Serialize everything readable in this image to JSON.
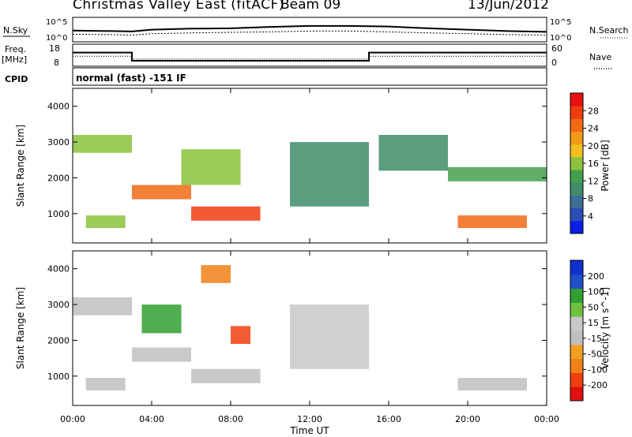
{
  "header": {
    "station": "Christmas Valley East (fitACF)",
    "beam": "Beam 09",
    "date": "13/Jun/2012"
  },
  "summary_panels": {
    "nsky_label": "N.Sky",
    "nsky_ticks": [
      "10^5",
      "10^0"
    ],
    "nsearch_label": "N.Search",
    "nsearch_ticks": [
      "10^5",
      "10^0"
    ],
    "freq_label_1": "Freq.",
    "freq_label_2": "[MHz]",
    "freq_ticks": [
      "18",
      "8"
    ],
    "nave_label": "Nave",
    "nave_ticks": [
      "60",
      "0"
    ],
    "cpid_label": "CPID",
    "cpid_value": "normal (fast) -151 IF"
  },
  "colors": {
    "power_scale": [
      "#0a1ee6",
      "#2a4cb4",
      "#3c6e96",
      "#3f8c6a",
      "#44a04e",
      "#8cc23c",
      "#f0c020",
      "#f09a18",
      "#f06a14",
      "#f03c10",
      "#e81010"
    ],
    "velocity_scale": [
      "#1030d0",
      "#2050c8",
      "#30a030",
      "#70c040",
      "#c8c8c8",
      "#c0c0c0",
      "#f0a020",
      "#f08018",
      "#f04010",
      "#e01010"
    ]
  },
  "chart_data": [
    {
      "type": "line",
      "title": "",
      "series": [
        {
          "name": "N.Sky",
          "x": [
            "00:00",
            "02:00",
            "03:00",
            "04:00",
            "06:00",
            "08:00",
            "10:00",
            "12:00",
            "14:00",
            "16:00",
            "18:00",
            "20:00",
            "22:00",
            "24:00"
          ],
          "values": [
            200,
            150,
            120,
            300,
            500,
            600,
            1200,
            2000,
            2000,
            1500,
            600,
            300,
            150,
            100
          ]
        },
        {
          "name": "N.Search",
          "x": [
            "00:00",
            "02:00",
            "03:00",
            "04:00",
            "06:00",
            "08:00",
            "10:00",
            "12:00",
            "14:00",
            "16:00",
            "18:00",
            "20:00",
            "22:00",
            "24:00"
          ],
          "values": [
            30,
            25,
            20,
            40,
            60,
            80,
            100,
            150,
            150,
            100,
            60,
            40,
            25,
            20
          ]
        }
      ],
      "ylim": [
        1,
        100000
      ],
      "yscale": "log"
    },
    {
      "type": "line",
      "series": [
        {
          "name": "Freq.",
          "x": [
            "00:00",
            "03:00",
            "03:00",
            "15:00",
            "15:00",
            "24:00"
          ],
          "values": [
            14.3,
            14.3,
            10.3,
            10.3,
            14.3,
            14.3
          ]
        },
        {
          "name": "Nave",
          "x": [
            "00:00",
            "03:00",
            "03:00",
            "15:00",
            "15:00",
            "24:00"
          ],
          "values": [
            27,
            27,
            19,
            19,
            27,
            27
          ]
        }
      ],
      "ylim_freq": [
        8,
        18
      ],
      "ylim_nave": [
        0,
        60
      ]
    },
    {
      "type": "heatmap",
      "quantity": "Power",
      "xlabel": "",
      "ylabel": "Slant Range [km]",
      "colorbar_label": "Power [dB]",
      "colorbar_ticks": [
        "28",
        "24",
        "20",
        "16",
        "12",
        "8",
        "4"
      ],
      "xlim": [
        "00:00",
        "24:00"
      ],
      "ylim": [
        180,
        4500
      ],
      "yticks": [
        "4000",
        "3000",
        "2000",
        "1000"
      ],
      "regions": [
        {
          "start": "00:00",
          "end": "03:00",
          "range_lo": 2700,
          "range_hi": 3200,
          "power": 14
        },
        {
          "start": "00:40",
          "end": "02:40",
          "range_lo": 600,
          "range_hi": 950,
          "power": 16
        },
        {
          "start": "03:00",
          "end": "06:00",
          "range_lo": 1400,
          "range_hi": 1800,
          "power": 24
        },
        {
          "start": "05:30",
          "end": "08:30",
          "range_lo": 1800,
          "range_hi": 2800,
          "power": 14
        },
        {
          "start": "06:00",
          "end": "09:30",
          "range_lo": 800,
          "range_hi": 1200,
          "power": 28
        },
        {
          "start": "11:00",
          "end": "15:00",
          "range_lo": 1200,
          "range_hi": 3000,
          "power": 10
        },
        {
          "start": "15:30",
          "end": "19:00",
          "range_lo": 2200,
          "range_hi": 3200,
          "power": 10
        },
        {
          "start": "19:00",
          "end": "24:00",
          "range_lo": 1900,
          "range_hi": 2300,
          "power": 12
        },
        {
          "start": "19:30",
          "end": "23:00",
          "range_lo": 600,
          "range_hi": 950,
          "power": 24
        }
      ]
    },
    {
      "type": "heatmap",
      "quantity": "Velocity",
      "xlabel": "Time UT",
      "ylabel": "Slant Range [km]",
      "colorbar_label": "Velocity [m s^-1]",
      "colorbar_ticks": [
        "200",
        "100",
        "50",
        "15",
        "-15",
        "-50",
        "-100",
        "-200"
      ],
      "xlim": [
        "00:00",
        "24:00"
      ],
      "xticks": [
        "00:00",
        "04:00",
        "08:00",
        "12:00",
        "16:00",
        "20:00",
        "00:00"
      ],
      "ylim": [
        180,
        4500
      ],
      "yticks": [
        "4000",
        "3000",
        "2000",
        "1000"
      ],
      "regions": [
        {
          "start": "00:00",
          "end": "03:00",
          "range_lo": 2700,
          "range_hi": 3200,
          "velocity": 0
        },
        {
          "start": "00:40",
          "end": "02:40",
          "range_lo": 600,
          "range_hi": 950,
          "velocity": 0
        },
        {
          "start": "03:30",
          "end": "05:30",
          "range_lo": 2200,
          "range_hi": 3000,
          "velocity": 150
        },
        {
          "start": "03:00",
          "end": "06:00",
          "range_lo": 1400,
          "range_hi": 1800,
          "velocity": 0
        },
        {
          "start": "06:30",
          "end": "08:00",
          "range_lo": 3600,
          "range_hi": 4100,
          "velocity": -150
        },
        {
          "start": "08:00",
          "end": "09:00",
          "range_lo": 1900,
          "range_hi": 2400,
          "velocity": -200
        },
        {
          "start": "06:00",
          "end": "09:30",
          "range_lo": 800,
          "range_hi": 1200,
          "velocity": -30
        },
        {
          "start": "11:00",
          "end": "15:00",
          "range_lo": 1200,
          "range_hi": 3000,
          "velocity": 20
        },
        {
          "start": "19:30",
          "end": "23:00",
          "range_lo": 600,
          "range_hi": 950,
          "velocity": 0
        }
      ]
    }
  ]
}
